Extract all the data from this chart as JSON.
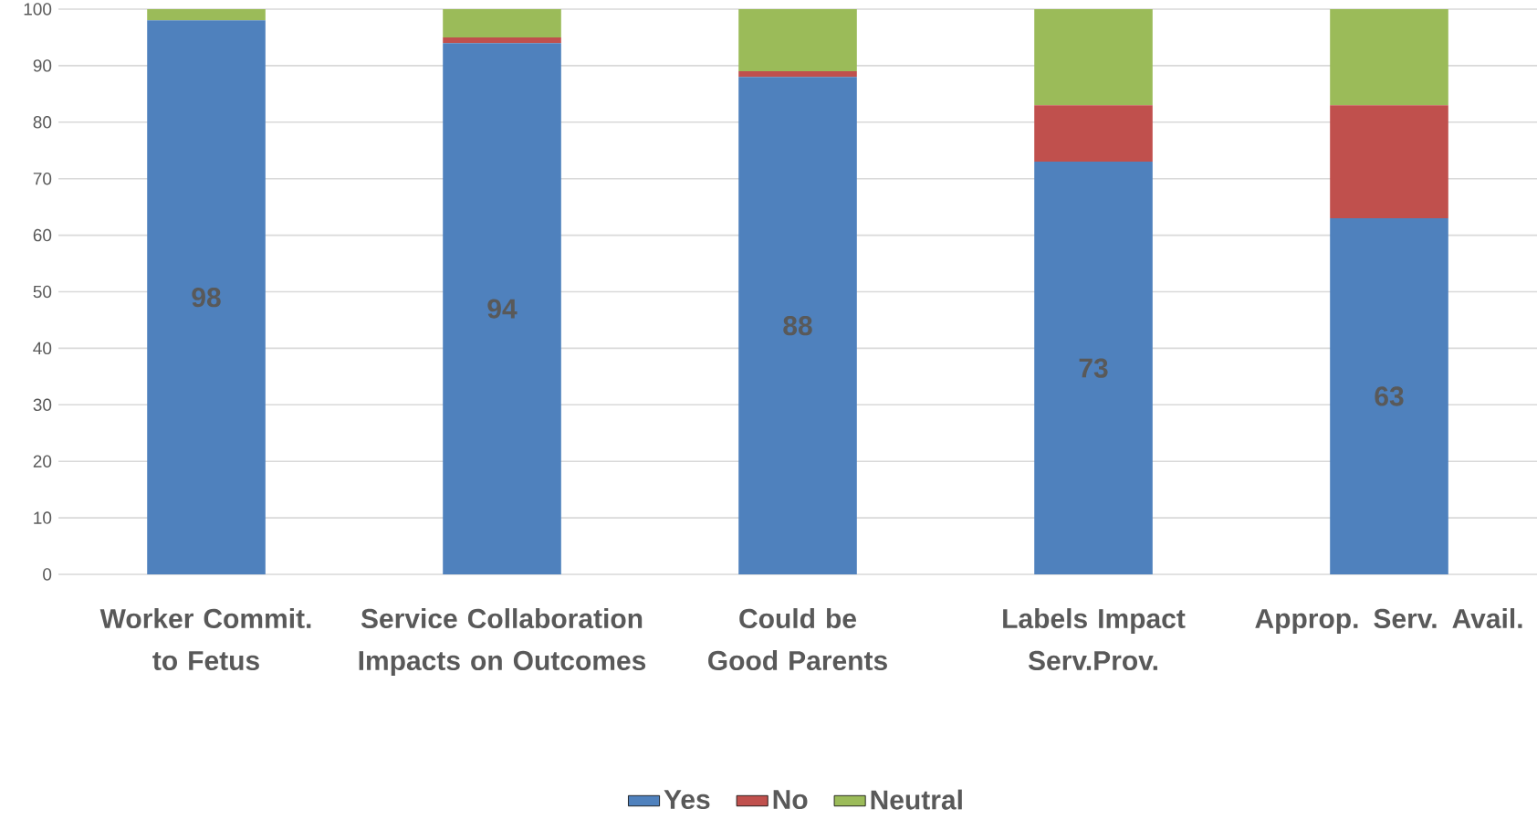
{
  "chart_data": {
    "type": "bar",
    "stacked": true,
    "categories": [
      "Worker Commit. to Fetus",
      "Service Collaboration Impacts on Outcomes",
      "Could be Good Parents",
      "Labels Impact Serv.Prov.",
      "Approp. Serv. Avail."
    ],
    "series": [
      {
        "name": "Yes",
        "color": "#4f81bd",
        "values": [
          98,
          94,
          88,
          73,
          63
        ],
        "value_labels": [
          "98",
          "94",
          "88",
          "73",
          "63"
        ]
      },
      {
        "name": "No",
        "color": "#c0504d",
        "values": [
          0,
          1,
          1,
          10,
          20
        ]
      },
      {
        "name": "Neutral",
        "color": "#9bbb59",
        "values": [
          2,
          5,
          11,
          17,
          17
        ]
      }
    ],
    "ylim": [
      0,
      100
    ],
    "yticks": [
      0,
      10,
      20,
      30,
      40,
      50,
      60,
      70,
      80,
      90,
      100
    ],
    "grid": "y",
    "legend": "bottom"
  }
}
